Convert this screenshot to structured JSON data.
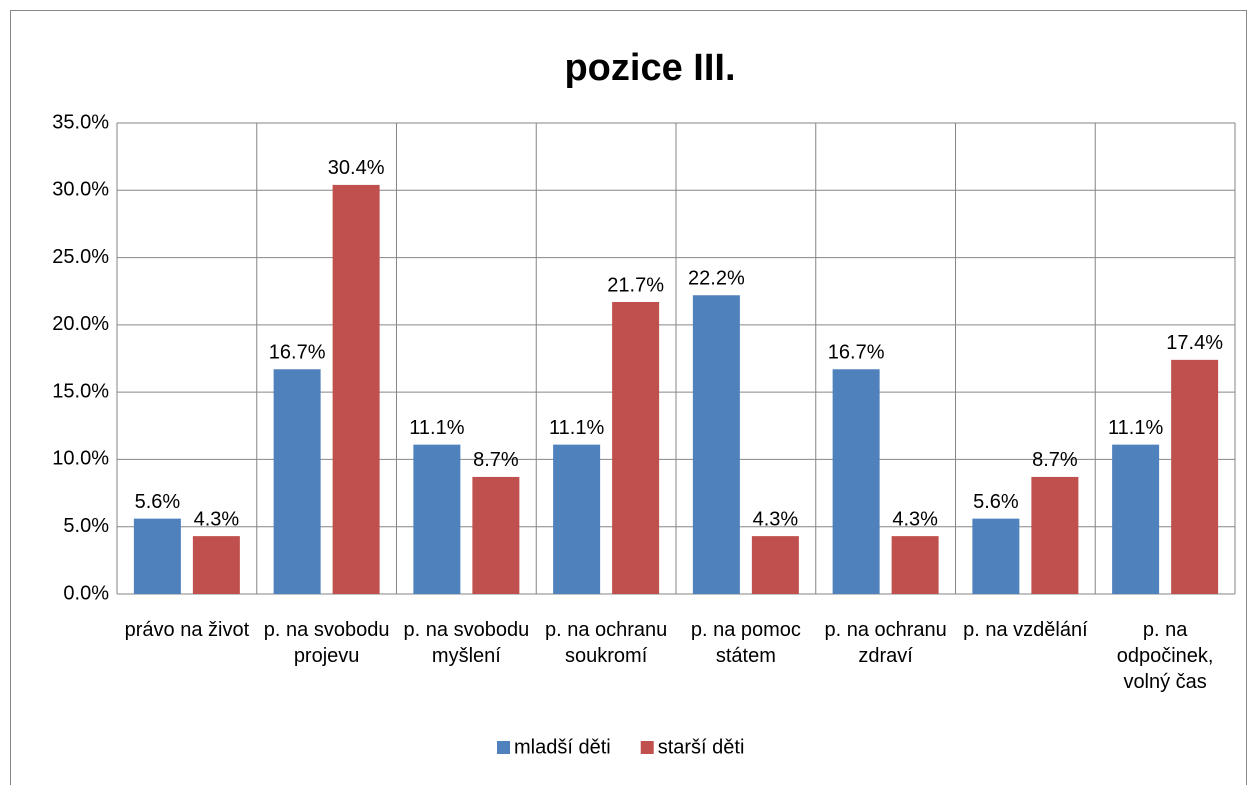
{
  "chart_data": {
    "type": "bar",
    "title": "pozice III.",
    "categories": [
      "právo na život",
      "p. na svobodu projevu",
      "p. na svobodu myšlení",
      "p. na ochranu soukromí",
      "p. na pomoc státem",
      "p. na ochranu zdraví",
      "p. na vzdělání",
      "p. na odpočinek, volný čas"
    ],
    "series": [
      {
        "name": "mladší děti",
        "color": "#4f81bd",
        "values": [
          5.6,
          16.7,
          11.1,
          11.1,
          22.2,
          16.7,
          5.6,
          11.1
        ],
        "value_labels": [
          "5.6%",
          "16.7%",
          "11.1%",
          "11.1%",
          "22.2%",
          "16.7%",
          "5.6%",
          "11.1%"
        ]
      },
      {
        "name": "starší děti",
        "color": "#c0504d",
        "values": [
          4.3,
          30.4,
          8.7,
          21.7,
          4.3,
          4.3,
          8.7,
          17.4
        ],
        "value_labels": [
          "4.3%",
          "30.4%",
          "8.7%",
          "21.7%",
          "4.3%",
          "4.3%",
          "8.7%",
          "17.4%"
        ]
      }
    ],
    "ylim": [
      0,
      35
    ],
    "yticks": [
      {
        "value": 0,
        "label": "0.0%"
      },
      {
        "value": 5,
        "label": "5.0%"
      },
      {
        "value": 10,
        "label": "10.0%"
      },
      {
        "value": 15,
        "label": "15.0%"
      },
      {
        "value": 20,
        "label": "20.0%"
      },
      {
        "value": 25,
        "label": "25.0%"
      },
      {
        "value": 30,
        "label": "30.0%"
      },
      {
        "value": 35,
        "label": "35.0%"
      }
    ],
    "grid": true,
    "legend": "bottom"
  }
}
